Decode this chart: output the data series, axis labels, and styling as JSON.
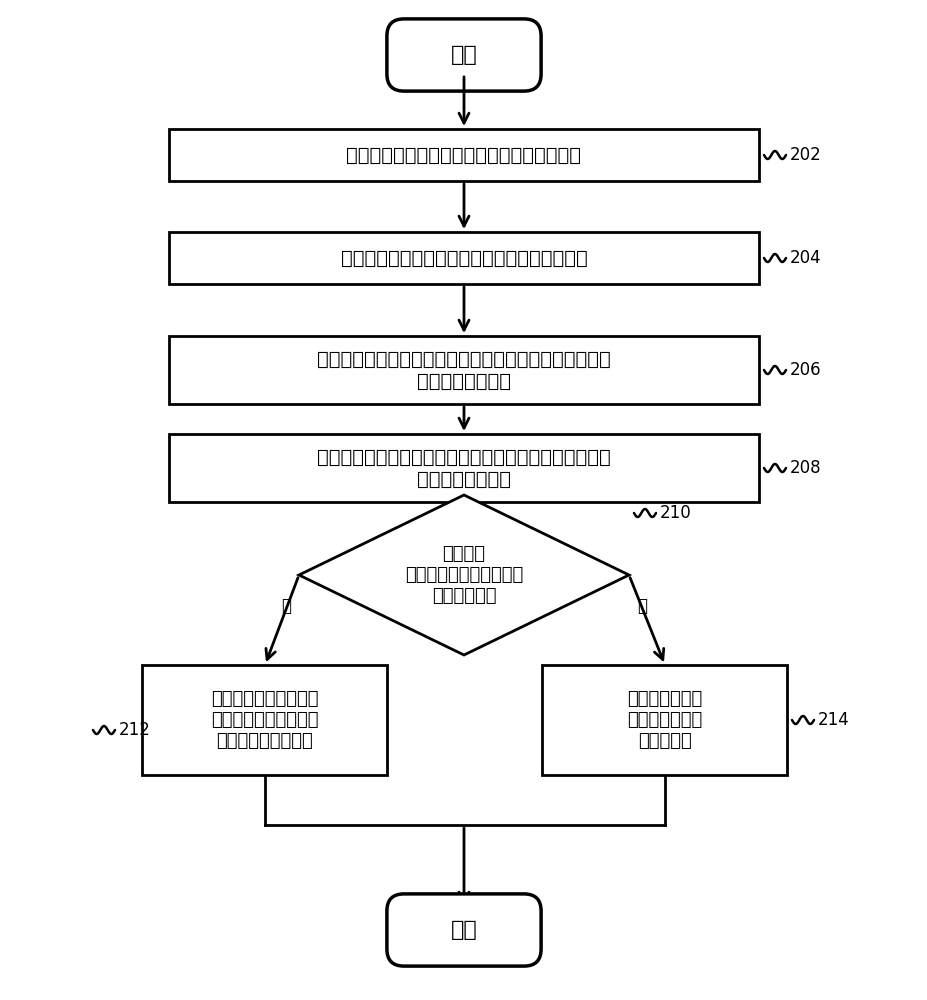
{
  "bg_color": "#ffffff",
  "line_color": "#000000",
  "text_color": "#000000",
  "font_size": 14,
  "small_font_size": 12,
  "start_text": "开始",
  "end_text": "结束",
  "box1_text": "接收来自若干个车载通信终端的中继选择请求",
  "box2_text": "根据中继选择请求中的接收信号，执行信道估计",
  "box3_line1": "根据信道估计的结果，计算来自每个车载通信终端的信号",
  "box3_line2": "对应的接收信噪比",
  "box4_line1": "在来自若干个车载通信终端的信号对应的接收信噪比中确",
  "box4_line2": "定最大接收信噪比",
  "diamond_text": "判断最大\n接收信噪比是否大于或等\n于预定信噪比",
  "box_left_line1": "在若干个车载通信终端",
  "box_left_line2": "中选择目标终端，为目",
  "box_left_line3": "标终端提供中继服务",
  "box_right_line1": "确定不为若干个",
  "box_right_line2": "车载通信终端提",
  "box_right_line3": "供中继服务",
  "label_yes": "是",
  "label_no": "否",
  "ref_202": "202",
  "ref_204": "204",
  "ref_206": "206",
  "ref_208": "208",
  "ref_210": "210",
  "ref_212": "212",
  "ref_214": "214"
}
